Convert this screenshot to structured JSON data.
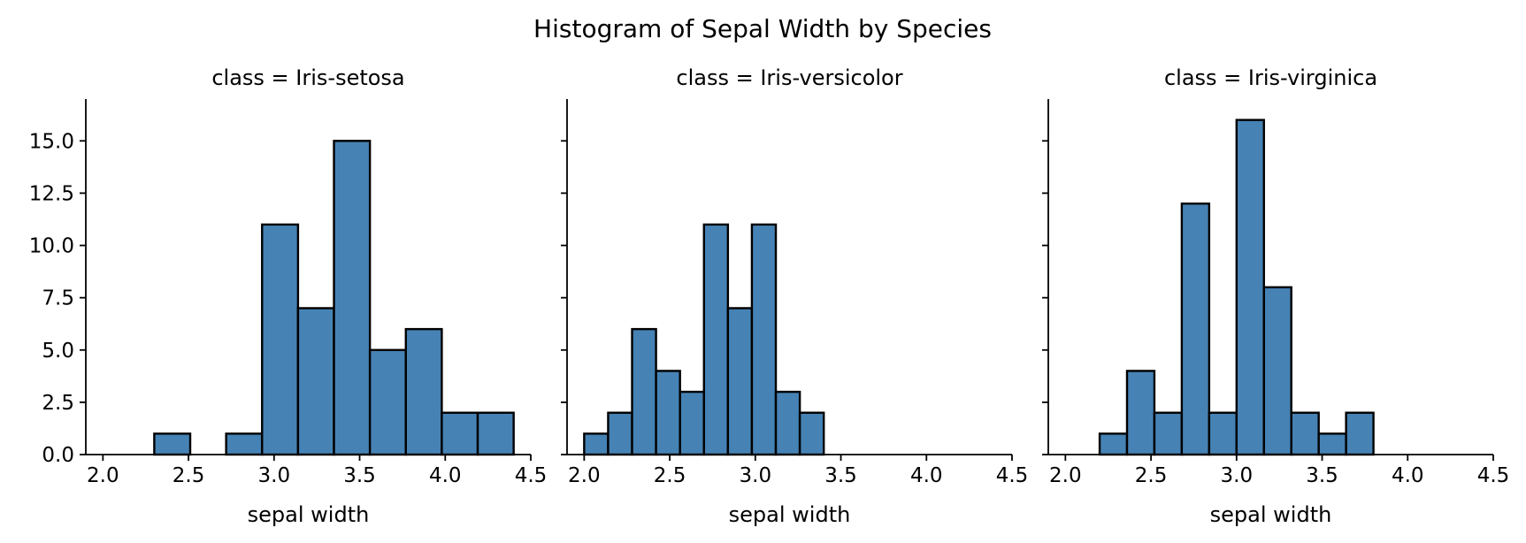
{
  "chart_data": {
    "type": "bar",
    "title": "Histogram of Sepal Width by Species",
    "xlabel": "sepal width",
    "xlim": [
      1.9,
      4.5
    ],
    "ylim": [
      0,
      17
    ],
    "xticks": [
      "2.0",
      "2.5",
      "3.0",
      "3.5",
      "4.0",
      "4.5"
    ],
    "yticks": [
      "0.0",
      "2.5",
      "5.0",
      "7.5",
      "10.0",
      "12.5",
      "15.0"
    ],
    "grid": false,
    "bar_color": "#4682b4",
    "panels": [
      {
        "title": "class = Iris-setosa",
        "bins": [
          {
            "x0": 2.3,
            "x1": 2.51,
            "count": 1
          },
          {
            "x0": 2.72,
            "x1": 2.93,
            "count": 1
          },
          {
            "x0": 2.93,
            "x1": 3.14,
            "count": 11
          },
          {
            "x0": 3.14,
            "x1": 3.35,
            "count": 7
          },
          {
            "x0": 3.35,
            "x1": 3.56,
            "count": 15
          },
          {
            "x0": 3.56,
            "x1": 3.77,
            "count": 5
          },
          {
            "x0": 3.77,
            "x1": 3.98,
            "count": 6
          },
          {
            "x0": 3.98,
            "x1": 4.19,
            "count": 2
          },
          {
            "x0": 4.19,
            "x1": 4.4,
            "count": 2
          }
        ]
      },
      {
        "title": "class = Iris-versicolor",
        "bins": [
          {
            "x0": 2.0,
            "x1": 2.14,
            "count": 1
          },
          {
            "x0": 2.14,
            "x1": 2.28,
            "count": 2
          },
          {
            "x0": 2.28,
            "x1": 2.42,
            "count": 6
          },
          {
            "x0": 2.42,
            "x1": 2.56,
            "count": 4
          },
          {
            "x0": 2.56,
            "x1": 2.7,
            "count": 3
          },
          {
            "x0": 2.7,
            "x1": 2.84,
            "count": 11
          },
          {
            "x0": 2.84,
            "x1": 2.98,
            "count": 7
          },
          {
            "x0": 2.98,
            "x1": 3.12,
            "count": 11
          },
          {
            "x0": 3.12,
            "x1": 3.26,
            "count": 3
          },
          {
            "x0": 3.26,
            "x1": 3.4,
            "count": 2
          }
        ]
      },
      {
        "title": "class = Iris-virginica",
        "bins": [
          {
            "x0": 2.2,
            "x1": 2.36,
            "count": 1
          },
          {
            "x0": 2.36,
            "x1": 2.52,
            "count": 4
          },
          {
            "x0": 2.52,
            "x1": 2.68,
            "count": 2
          },
          {
            "x0": 2.68,
            "x1": 2.84,
            "count": 12
          },
          {
            "x0": 2.84,
            "x1": 3.0,
            "count": 2
          },
          {
            "x0": 3.0,
            "x1": 3.16,
            "count": 16
          },
          {
            "x0": 3.16,
            "x1": 3.32,
            "count": 8
          },
          {
            "x0": 3.32,
            "x1": 3.48,
            "count": 2
          },
          {
            "x0": 3.48,
            "x1": 3.64,
            "count": 1
          },
          {
            "x0": 3.64,
            "x1": 3.8,
            "count": 2
          }
        ]
      }
    ]
  }
}
